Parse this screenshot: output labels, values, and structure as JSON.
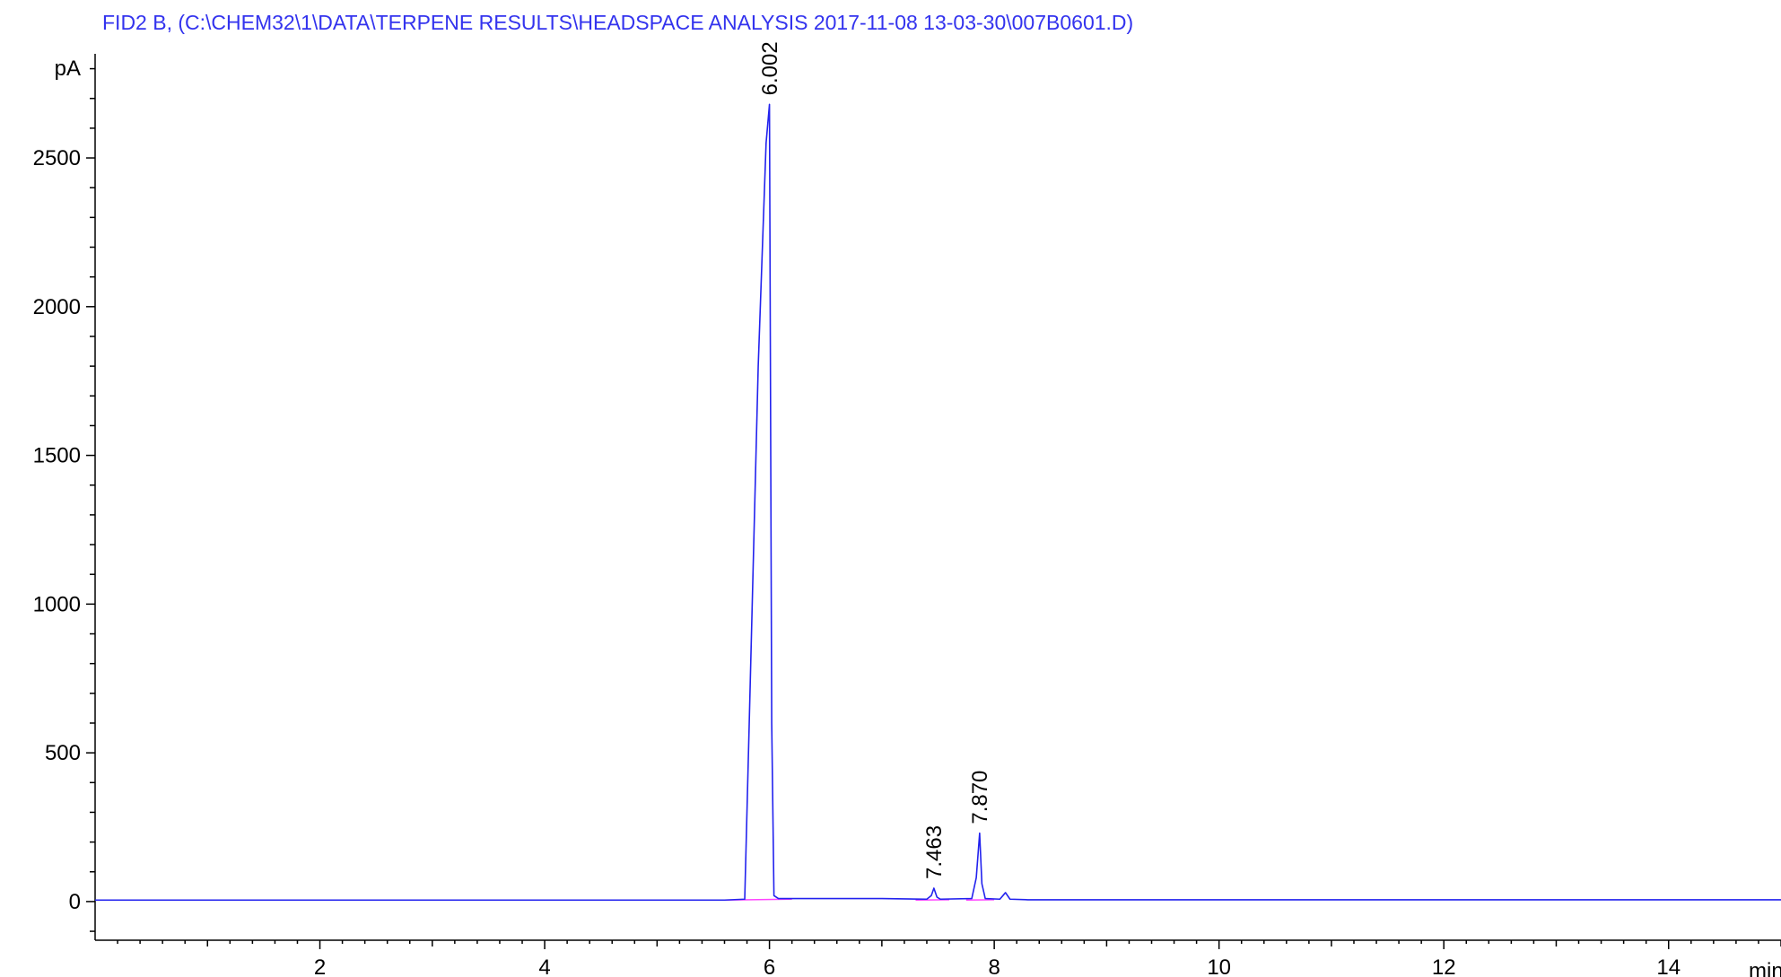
{
  "header": {
    "title": "FID2 B,  (C:\\CHEM32\\1\\DATA\\TERPENE RESULTS\\HEADSPACE ANALYSIS 2017-11-08 13-03-30\\007B0601.D)"
  },
  "colors": {
    "trace": "#2222ee",
    "baseline": "#ff44ff",
    "axis": "#000000",
    "title": "#3333ee"
  },
  "chart_data": {
    "type": "line",
    "ylabel": "pA",
    "xlabel": "min",
    "xlim": [
      0,
      15
    ],
    "ylim": [
      -130,
      2850
    ],
    "x_ticks": [
      2,
      4,
      6,
      8,
      10,
      12,
      14
    ],
    "x_tick_labels": [
      "2",
      "4",
      "6",
      "8",
      "10",
      "12",
      "14"
    ],
    "y_ticks": [
      0,
      500,
      1000,
      1500,
      2000,
      2500
    ],
    "y_tick_labels": [
      "0",
      "500",
      "1000",
      "1500",
      "2000",
      "2500"
    ],
    "grid": false,
    "series": [
      {
        "x": [
          0,
          1,
          2,
          3,
          4,
          5,
          5.6,
          5.78,
          5.82,
          5.9,
          5.97,
          6.0,
          6.02,
          6.04,
          6.08,
          7.0,
          7.4,
          7.44,
          7.463,
          7.49,
          7.52,
          7.8,
          7.84,
          7.87,
          7.89,
          7.92,
          8.05,
          8.1,
          8.14,
          8.3,
          9,
          10,
          11,
          12,
          13,
          14,
          15
        ],
        "y": [
          5,
          5,
          5,
          5,
          5,
          5,
          5,
          8,
          600,
          1800,
          2550,
          2680,
          600,
          20,
          10,
          10,
          8,
          20,
          45,
          15,
          8,
          10,
          80,
          230,
          60,
          10,
          8,
          30,
          8,
          6,
          6,
          6,
          6,
          6,
          6,
          6,
          6
        ]
      }
    ],
    "peaks": [
      {
        "label": "6.002",
        "x": 6.002,
        "y": 2680
      },
      {
        "label": "7.463",
        "x": 7.463,
        "y": 45
      },
      {
        "label": "7.870",
        "x": 7.87,
        "y": 230
      }
    ],
    "baseline_segments": [
      {
        "x": [
          5.6,
          6.2
        ],
        "y": [
          5,
          8
        ]
      },
      {
        "x": [
          7.3,
          7.6
        ],
        "y": [
          5,
          6
        ]
      },
      {
        "x": [
          7.75,
          8.0
        ],
        "y": [
          5,
          6
        ]
      }
    ]
  }
}
